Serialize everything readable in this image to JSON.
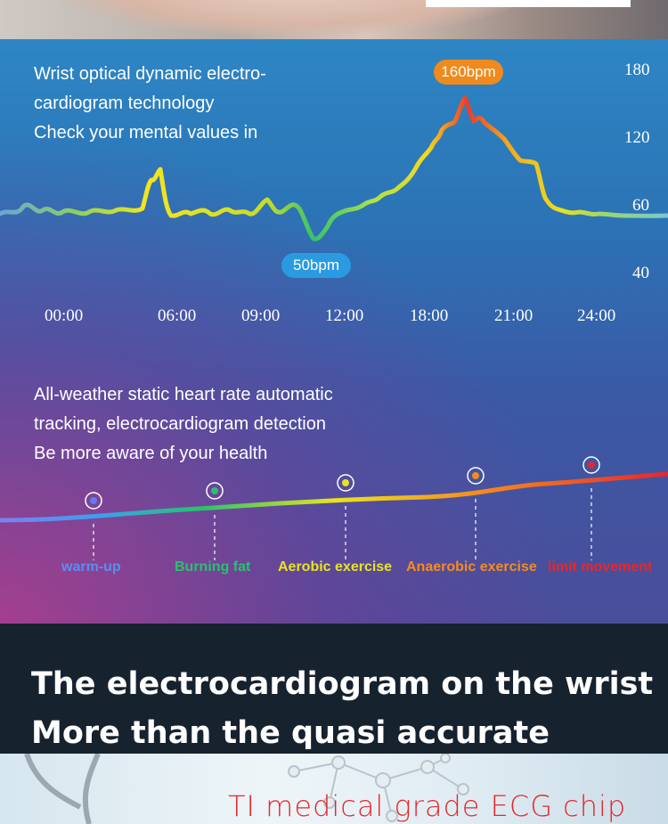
{
  "chart_data": {
    "type": "line",
    "title": "",
    "x_ticks": [
      "00:00",
      "06:00",
      "09:00",
      "12:00",
      "18:00",
      "21:00",
      "24:00"
    ],
    "y_ticks": [
      "180",
      "120",
      "60",
      "40"
    ],
    "series": [
      {
        "values_bpm": [
          60,
          58,
          61,
          57,
          62,
          60,
          59,
          61,
          58,
          60,
          66,
          88,
          70,
          60,
          61,
          58,
          62,
          59,
          60,
          63,
          66,
          60,
          54,
          50,
          56,
          60,
          62,
          64,
          66,
          68,
          72,
          78,
          88,
          100,
          118,
          132,
          140,
          160,
          148,
          150,
          140,
          130,
          120,
          105,
          80,
          62,
          60,
          58,
          60,
          61,
          59,
          58
        ]
      }
    ],
    "annotations": [
      {
        "label": "160bpm",
        "value": 160
      },
      {
        "label": "50bpm",
        "value": 50
      }
    ]
  },
  "text_top": {
    "line1": "Wrist optical dynamic electro-",
    "line2": "cardiogram technology",
    "line3": "Check your mental values in"
  },
  "text_mid": {
    "line1": "All-weather static heart rate automatic",
    "line2": "tracking, electrocardiogram detection",
    "line3": "Be more aware of your health"
  },
  "zones": [
    {
      "label": "warm-up",
      "color": "#5a7ff0"
    },
    {
      "label": "Burning fat",
      "color": "#27c26e"
    },
    {
      "label": "Aerobic exercise",
      "color": "#e8e41e"
    },
    {
      "label": "Anaerobic exercise",
      "color": "#f58b1f"
    },
    {
      "label": "limit movement",
      "color": "#e8262b"
    }
  ],
  "headline": {
    "line1": "The electrocardiogram on the wrist",
    "line2": "More than the quasi accurate"
  },
  "chip_caption": "TI medical grade ECG chip"
}
